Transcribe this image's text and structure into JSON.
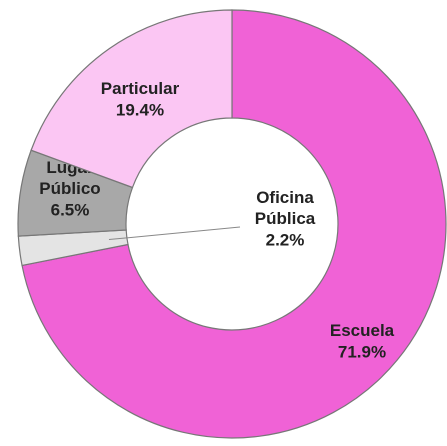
{
  "chart_data": {
    "type": "pie",
    "donut": true,
    "categories": [
      "Escuela",
      "Oficina Pública",
      "Lugar Público",
      "Particular"
    ],
    "values": [
      71.9,
      2.2,
      6.5,
      19.4
    ],
    "value_labels": [
      "71.9%",
      "2.2%",
      "6.5%",
      "19.4%"
    ],
    "colors": [
      "#f062d6",
      "#e4e4e4",
      "#a8a8a8",
      "#fbc6f3"
    ]
  }
}
